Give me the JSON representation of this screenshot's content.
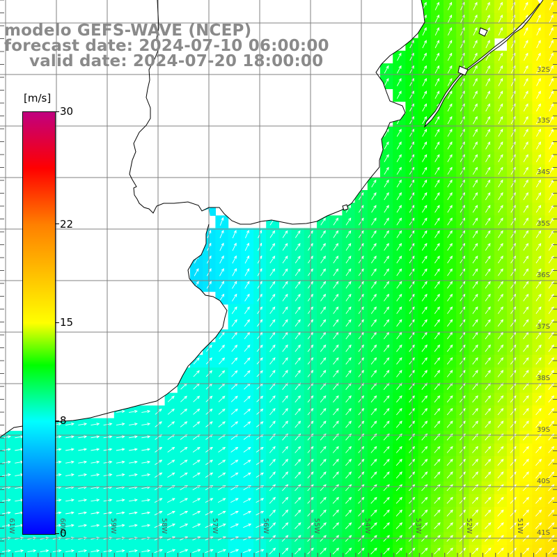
{
  "title": {
    "line1": "modelo GEFS-WAVE (NCEP)",
    "line2": "forecast date: 2024-07-10 06:00:00",
    "line3": "valid date: 2024-07-20 18:00:00"
  },
  "colorbar": {
    "unit": "[m/s]",
    "ticks": [
      "30",
      "22",
      "15",
      "8",
      "0"
    ],
    "tick_values": [
      30,
      22,
      15,
      8,
      0
    ],
    "min": 0,
    "max": 30,
    "colors": [
      "#0000ff",
      "#0080ff",
      "#00ffff",
      "#00ff00",
      "#ffff00",
      "#ff8000",
      "#ff0000",
      "#c00080"
    ]
  },
  "latitude_labels": [
    "32S",
    "33S",
    "34S",
    "35S",
    "36S",
    "37S",
    "38S",
    "39S",
    "40S",
    "41S"
  ],
  "longitude_labels": [
    "61W",
    "60W",
    "59W",
    "58W",
    "57W",
    "56W",
    "55W",
    "54W",
    "53W",
    "52W",
    "51W"
  ],
  "colors": {
    "land": "#ffffff",
    "coast": "#000000",
    "grid": "#808080",
    "arrow": "#ffffff",
    "title_text": "#8a8a8a"
  },
  "field": {
    "variable": "wind speed",
    "unit": "m/s",
    "arrow_direction": "from SW toward NE",
    "range_estimate": [
      7,
      17
    ]
  }
}
